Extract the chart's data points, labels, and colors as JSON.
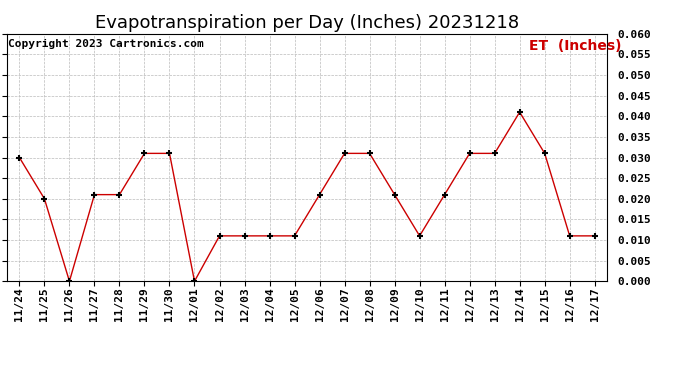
{
  "title": "Evapotranspiration per Day (Inches) 20231218",
  "copyright": "Copyright 2023 Cartronics.com",
  "legend_label": "ET  (Inches)",
  "dates": [
    "11/24",
    "11/25",
    "11/26",
    "11/27",
    "11/28",
    "11/29",
    "11/30",
    "12/01",
    "12/02",
    "12/03",
    "12/04",
    "12/05",
    "12/06",
    "12/07",
    "12/08",
    "12/09",
    "12/10",
    "12/11",
    "12/12",
    "12/13",
    "12/14",
    "12/15",
    "12/16",
    "12/17"
  ],
  "values": [
    0.03,
    0.02,
    0.0,
    0.021,
    0.021,
    0.031,
    0.031,
    0.0,
    0.011,
    0.011,
    0.011,
    0.011,
    0.021,
    0.031,
    0.031,
    0.021,
    0.011,
    0.021,
    0.031,
    0.031,
    0.041,
    0.031,
    0.011,
    0.011
  ],
  "line_color": "#cc0000",
  "marker_color": "#000000",
  "ylim": [
    0.0,
    0.06
  ],
  "yticks": [
    0.0,
    0.005,
    0.01,
    0.015,
    0.02,
    0.025,
    0.03,
    0.035,
    0.04,
    0.045,
    0.05,
    0.055,
    0.06
  ],
  "background_color": "#ffffff",
  "grid_color": "#bbbbbb",
  "title_fontsize": 13,
  "copyright_fontsize": 8,
  "legend_fontsize": 10,
  "tick_fontsize": 8,
  "fig_width": 6.9,
  "fig_height": 3.75,
  "dpi": 100
}
